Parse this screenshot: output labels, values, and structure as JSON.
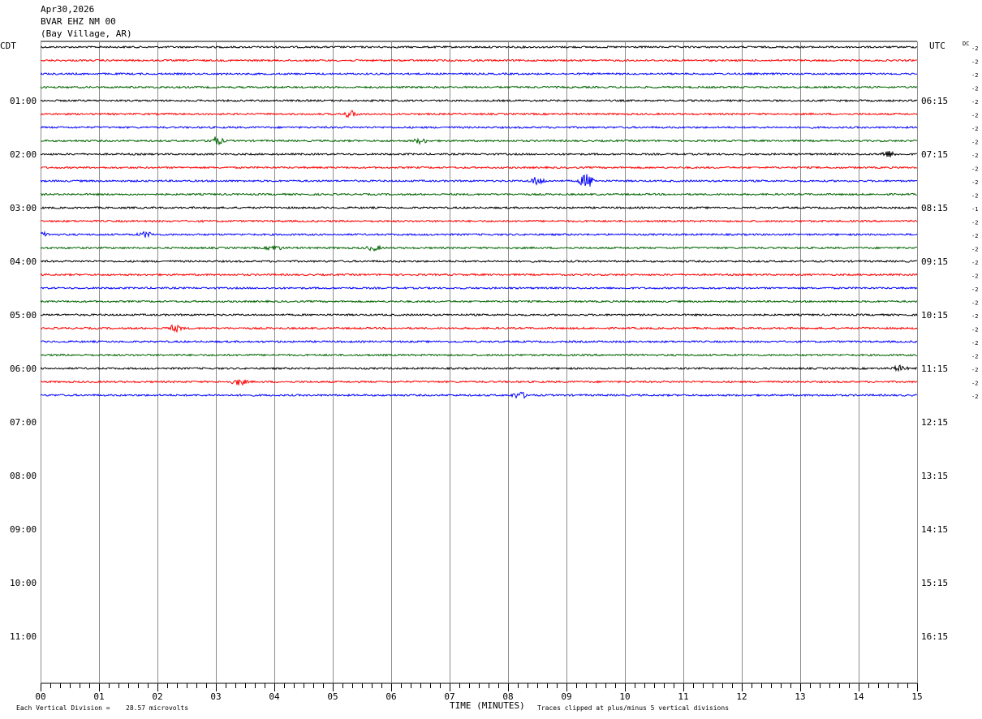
{
  "header": {
    "date": "Apr30,2026",
    "station": "BVAR EHZ NM 00",
    "location": "(Bay Village, AR)"
  },
  "chart_data": {
    "type": "line",
    "title": "Apr30,2026 BVAR EHZ NM 00 (Bay Village, AR)",
    "xlabel": "TIME (MINUTES)",
    "xlim": [
      0,
      15
    ],
    "x_ticks": [
      "00",
      "01",
      "02",
      "03",
      "04",
      "05",
      "06",
      "07",
      "08",
      "09",
      "10",
      "11",
      "12",
      "13",
      "14",
      "15"
    ],
    "left_axis_label": "CDT",
    "right_axis_label": "UTC",
    "dc_label": "DC",
    "left_hour_labels": [
      "01:00",
      "02:00",
      "03:00",
      "04:00",
      "05:00",
      "06:00",
      "07:00",
      "08:00",
      "09:00",
      "10:00",
      "11:00"
    ],
    "right_hour_labels": [
      "06:15",
      "07:15",
      "08:15",
      "09:15",
      "10:15",
      "11:15",
      "12:15",
      "13:15",
      "14:15",
      "15:15",
      "16:15"
    ],
    "rows_per_hour": 4,
    "total_rows": 48,
    "trace_colors": [
      "#000000",
      "#ff0000",
      "#0000ff",
      "#006400"
    ],
    "grid": true,
    "series": [
      {
        "row": 0,
        "dc": "-2",
        "events": []
      },
      {
        "row": 1,
        "dc": "-2",
        "events": []
      },
      {
        "row": 2,
        "dc": "-2",
        "events": []
      },
      {
        "row": 3,
        "dc": "-2",
        "events": []
      },
      {
        "row": 4,
        "dc": "-2",
        "events": []
      },
      {
        "row": 5,
        "dc": "-2",
        "events": [
          {
            "t": 5.3,
            "amp": 4
          }
        ]
      },
      {
        "row": 6,
        "dc": "-2",
        "events": []
      },
      {
        "row": 7,
        "dc": "-2",
        "events": [
          {
            "t": 3.0,
            "amp": 5
          },
          {
            "t": 6.5,
            "amp": 3
          }
        ]
      },
      {
        "row": 8,
        "dc": "-2",
        "events": [
          {
            "t": 14.5,
            "amp": 4
          }
        ]
      },
      {
        "row": 9,
        "dc": "-2",
        "events": []
      },
      {
        "row": 10,
        "dc": "-2",
        "events": [
          {
            "t": 8.5,
            "amp": 5
          },
          {
            "t": 9.35,
            "amp": 9
          }
        ]
      },
      {
        "row": 11,
        "dc": "-2",
        "events": []
      },
      {
        "row": 12,
        "dc": "-1",
        "events": []
      },
      {
        "row": 13,
        "dc": "-2",
        "events": []
      },
      {
        "row": 14,
        "dc": "-2",
        "events": [
          {
            "t": 0.0,
            "amp": 3
          },
          {
            "t": 1.8,
            "amp": 3
          }
        ]
      },
      {
        "row": 15,
        "dc": "-2",
        "events": [
          {
            "t": 4.0,
            "amp": 3
          },
          {
            "t": 5.7,
            "amp": 3
          }
        ]
      },
      {
        "row": 16,
        "dc": "-2",
        "events": []
      },
      {
        "row": 17,
        "dc": "-2",
        "events": []
      },
      {
        "row": 18,
        "dc": "-2",
        "events": []
      },
      {
        "row": 19,
        "dc": "-2",
        "events": []
      },
      {
        "row": 20,
        "dc": "-2",
        "events": []
      },
      {
        "row": 21,
        "dc": "-2",
        "events": [
          {
            "t": 2.3,
            "amp": 4
          }
        ]
      },
      {
        "row": 22,
        "dc": "-2",
        "events": []
      },
      {
        "row": 23,
        "dc": "-2",
        "events": []
      },
      {
        "row": 24,
        "dc": "-2",
        "events": [
          {
            "t": 14.7,
            "amp": 3
          }
        ]
      },
      {
        "row": 25,
        "dc": "-2",
        "events": [
          {
            "t": 3.4,
            "amp": 4
          }
        ]
      },
      {
        "row": 26,
        "dc": "-2",
        "events": [
          {
            "t": 8.2,
            "amp": 4
          }
        ]
      }
    ],
    "footer": {
      "scale_label": "Each Vertical Division =",
      "scale_value": "28.57 microvolts",
      "clip_note": "Traces clipped at plus/minus 5 vertical divisions"
    }
  }
}
